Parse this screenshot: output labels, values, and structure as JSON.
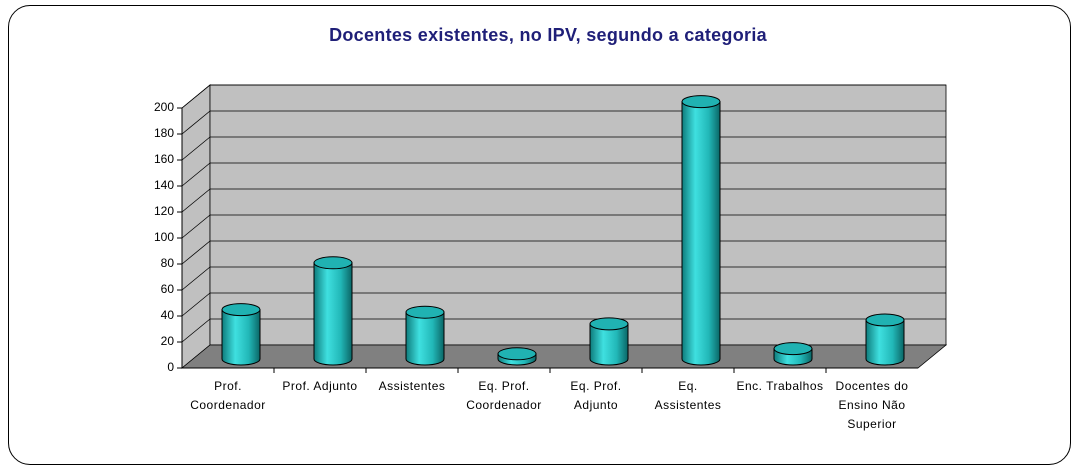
{
  "chart_data": {
    "type": "bar",
    "title": "Docentes existentes, no IPV, segundo a categoria",
    "categories": [
      "Prof. Coordenador",
      "Prof. Adjunto",
      "Assistentes",
      "Eq. Prof. Coordenador",
      "Eq. Prof. Adjunto",
      "Eq. Assistentes",
      "Enc. Trabalhos",
      "Docentes do Ensino Não Superior"
    ],
    "values": [
      38,
      74,
      36,
      4,
      27,
      198,
      8,
      30
    ],
    "color": "#20B2B2",
    "ylim": [
      0,
      200
    ],
    "yticks": [
      0,
      20,
      40,
      60,
      80,
      100,
      120,
      140,
      160,
      180,
      200
    ],
    "grid": true
  }
}
